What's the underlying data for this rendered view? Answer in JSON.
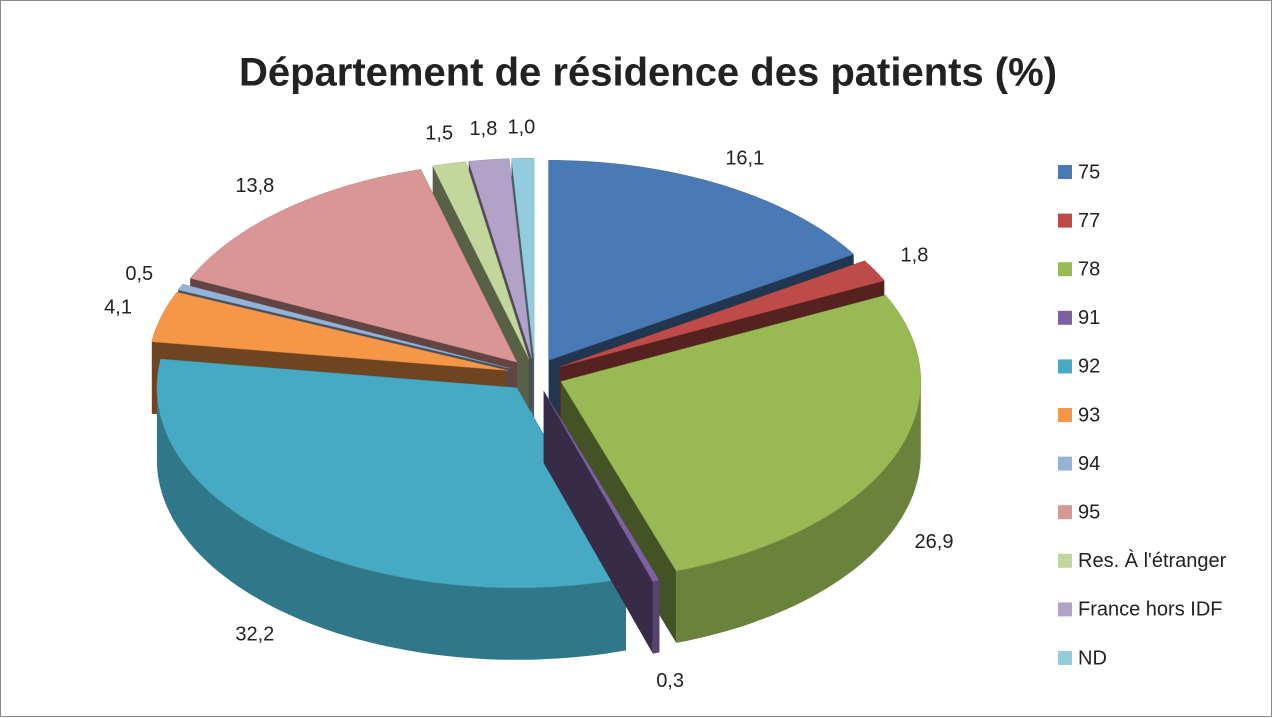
{
  "chart_data": {
    "type": "pie",
    "title": "Département de résidence des patients (%)",
    "categories": [
      "75",
      "77",
      "78",
      "91",
      "92",
      "93",
      "94",
      "95",
      "Res. À l'étranger",
      "France hors IDF",
      "ND"
    ],
    "values": [
      16.1,
      1.8,
      26.9,
      0.3,
      32.2,
      4.1,
      0.5,
      13.8,
      1.5,
      1.8,
      1.0
    ],
    "value_labels": [
      "16,1",
      "1,8",
      "26,9",
      "0,3",
      "32,2",
      "4,1",
      "0,5",
      "13,8",
      "1,5",
      "1,8",
      "1,0"
    ],
    "colors": [
      "#4a7ab5",
      "#be4b48",
      "#98b954",
      "#7d60a0",
      "#46aac5",
      "#f79646",
      "#95b3d7",
      "#d99694",
      "#c3d69b",
      "#b3a2c7",
      "#93cddd"
    ],
    "legend": "right"
  }
}
